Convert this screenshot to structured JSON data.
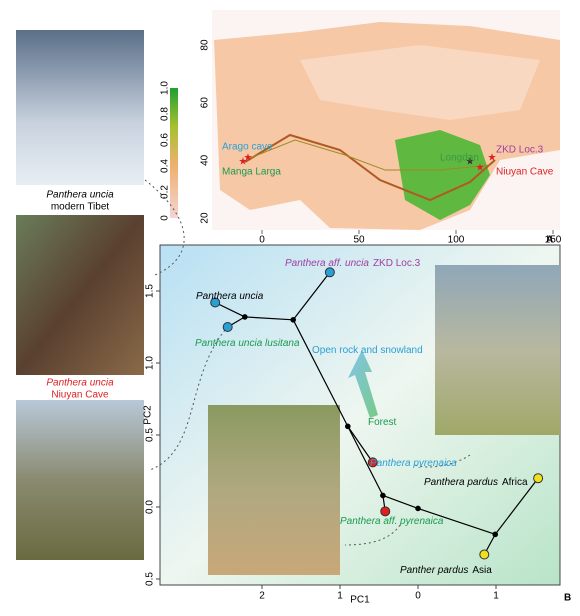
{
  "figure": {
    "left_panels": [
      {
        "caption_species": "Panthera uncia",
        "caption_locality": "modern Tibet"
      },
      {
        "caption_species": "Panthera uncia",
        "caption_locality": "Niuyan Cave"
      }
    ],
    "map": {
      "panel": "A",
      "xticks": [
        0,
        50,
        100,
        150
      ],
      "yticks": [
        20,
        40,
        60,
        80
      ],
      "colorbar_ticks": [
        {
          "value": 1,
          "label": "1.0"
        },
        {
          "value": 0.8,
          "label": "0.8"
        },
        {
          "value": 0.6,
          "label": "0.6"
        },
        {
          "value": 0.4,
          "label": "0.4"
        },
        {
          "value": 0.2,
          "label": "0.2"
        },
        0
      ],
      "sites": [
        {
          "name": "Arago cave",
          "color": "#2a9fd6"
        },
        {
          "name": "Manga Larga",
          "color": "#1a9a50"
        },
        {
          "name": "ZKD Loc.3",
          "color": "#a040a0"
        },
        {
          "name": "Longdan",
          "color": "#3a9a40"
        },
        {
          "name": "Niuyan Cave",
          "color": "#e02020"
        }
      ]
    },
    "pca": {
      "panel": "B",
      "xlabel": "PC1",
      "ylabel": "PC2",
      "xticks": [
        2,
        1,
        0,
        {
          "value": -1,
          "label": "1"
        }
      ],
      "yticks": [
        {
          "value": 1.5,
          "label": "1.5"
        },
        {
          "value": 1,
          "label": "1.0"
        },
        {
          "value": 0.5,
          "label": "0.5"
        },
        {
          "value": 0,
          "label": "0.0"
        },
        {
          "value": -0.5,
          "label": "0.5"
        }
      ],
      "points": [
        {
          "pc1": 1.13,
          "pc2": 1.63,
          "color": "#2a9fd6"
        },
        {
          "pc1": 2.6,
          "pc2": 1.42,
          "color": "#2a9fd6"
        },
        {
          "pc1": 2.44,
          "pc2": 1.25,
          "color": "#2a9fd6"
        },
        {
          "pc1": 2.22,
          "pc2": 1.32,
          "color": "#000000"
        },
        {
          "pc1": 1.6,
          "pc2": 1.3,
          "color": "#000000"
        },
        {
          "pc1": 0.9,
          "pc2": 0.56,
          "color": "#000000"
        },
        {
          "pc1": 0.58,
          "pc2": 0.31,
          "color": "#e02020"
        },
        {
          "pc1": 0.45,
          "pc2": 0.08,
          "color": "#000000"
        },
        {
          "pc1": 0.42,
          "pc2": -0.03,
          "color": "#e02020"
        },
        {
          "pc1": 0,
          "pc2": -0.01,
          "color": "#000000"
        },
        {
          "pc1": -0.99,
          "pc2": -0.19,
          "color": "#000000"
        },
        {
          "pc1": -1.54,
          "pc2": 0.2,
          "color": "#f0e020"
        },
        {
          "pc1": -0.85,
          "pc2": -0.33,
          "color": "#f0e020"
        }
      ],
      "edges": [
        [
          1,
          3
        ],
        [
          2,
          3
        ],
        [
          3,
          4
        ],
        [
          4,
          0
        ],
        [
          4,
          5
        ],
        [
          5,
          6
        ],
        [
          5,
          7
        ],
        [
          7,
          8
        ],
        [
          7,
          9
        ],
        [
          9,
          10
        ],
        [
          10,
          11
        ],
        [
          10,
          12
        ]
      ],
      "labels": [
        {
          "italic": "Panthera aff. uncia",
          "text": "ZKD Loc.3",
          "color": "#a040a0"
        },
        {
          "italic": "Panthera  uncia",
          "text": "",
          "color": "#000000"
        },
        {
          "italic": "Panthera uncia lusitana",
          "text": "",
          "color": "#1a9a50"
        },
        {
          "italic": "",
          "text": "Open rock and snowland",
          "color": "#2a9fd6"
        },
        {
          "italic": "",
          "text": "Forest",
          "color": "#1a9a50"
        },
        {
          "italic": "Panthera pyrenaica",
          "text": "",
          "color": "#2a9fd6"
        },
        {
          "italic": "Panthera pardus",
          "text": "Africa",
          "color": "#000000"
        },
        {
          "italic": "Panthera aff. pyrenaica",
          "text": "",
          "color": "#1a9a50"
        },
        {
          "italic": "Panther pardus",
          "text": "Asia",
          "color": "#000000"
        }
      ]
    }
  }
}
